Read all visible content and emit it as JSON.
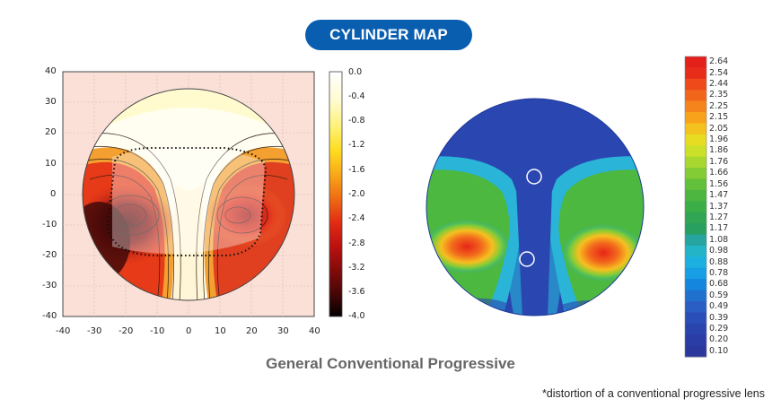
{
  "title_badge": "CYLINDER MAP",
  "caption": "General Conventional Progressive",
  "footnote": "*distortion of a conventional progressive lens",
  "left_plot": {
    "y_ticks": [
      "40",
      "30",
      "20",
      "10",
      "0",
      "-10",
      "-20",
      "-30",
      "-40"
    ],
    "x_ticks": [
      "-40",
      "-30",
      "-20",
      "-10",
      "0",
      "10",
      "20",
      "30",
      "40"
    ],
    "colorbar_labels": [
      "0.0",
      "-0.4",
      "-0.8",
      "-1.2",
      "-1.6",
      "-2.0",
      "-2.4",
      "-2.8",
      "-3.2",
      "-3.6",
      "-4.0"
    ],
    "colorbar_colors": [
      "#ffffff",
      "#fffbd0",
      "#fff27a",
      "#ffdd20",
      "#f8a818",
      "#ef6a14",
      "#e02a12",
      "#b81010",
      "#7e0a0a",
      "#3e0606",
      "#000000"
    ]
  },
  "right_plot": {
    "colorbar_labels": [
      "2.64",
      "2.54",
      "2.44",
      "2.35",
      "2.25",
      "2.15",
      "2.05",
      "1.96",
      "1.86",
      "1.76",
      "1.66",
      "1.56",
      "1.47",
      "1.37",
      "1.27",
      "1.17",
      "1.08",
      "0.98",
      "0.88",
      "0.78",
      "0.68",
      "0.59",
      "0.49",
      "0.39",
      "0.29",
      "0.20",
      "0.10"
    ],
    "colorbar_colors": [
      "#e4201a",
      "#e82c1a",
      "#ee4a1a",
      "#f2661c",
      "#f6841c",
      "#f8a21c",
      "#f4c21e",
      "#e8dc22",
      "#cce02a",
      "#a8d830",
      "#84cc36",
      "#62c03a",
      "#4cb640",
      "#3cae48",
      "#30a654",
      "#28a060",
      "#26a4a0",
      "#24b4c8",
      "#1cb0e0",
      "#189ee4",
      "#1486de",
      "#2070d0",
      "#2a5ec4",
      "#2a4eb8",
      "#2a44ae",
      "#2a3ca6",
      "#2a389e"
    ]
  }
}
